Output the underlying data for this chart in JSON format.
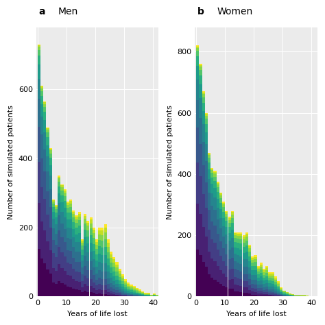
{
  "men_heights": [
    730,
    610,
    565,
    490,
    430,
    280,
    265,
    350,
    325,
    310,
    275,
    280,
    250,
    235,
    245,
    165,
    240,
    220,
    230,
    200,
    165,
    200,
    200,
    210,
    165,
    130,
    115,
    100,
    80,
    65,
    50,
    40,
    35,
    30,
    25,
    20,
    15,
    10,
    10,
    5,
    8,
    5
  ],
  "women_heights": [
    820,
    760,
    670,
    600,
    470,
    420,
    410,
    375,
    340,
    310,
    280,
    260,
    280,
    210,
    210,
    210,
    200,
    210,
    170,
    130,
    135,
    100,
    110,
    90,
    100,
    80,
    80,
    65,
    50,
    30,
    20,
    15,
    10,
    8,
    5,
    5,
    5,
    5,
    3,
    2,
    2,
    2
  ],
  "title_men": "Men",
  "title_women": "Women",
  "label_a": "a",
  "label_b": "b",
  "xlabel": "Years of life lost",
  "ylabel": "Number of simulated patients",
  "xlim_men": [
    -0.5,
    42
  ],
  "xlim_women": [
    -0.5,
    42
  ],
  "ylim_men": [
    0,
    780
  ],
  "ylim_women": [
    0,
    880
  ],
  "yticks_men": [
    0,
    200,
    400,
    600
  ],
  "yticks_women": [
    0,
    200,
    400,
    600,
    800
  ],
  "xticks": [
    0,
    10,
    20,
    30,
    40
  ],
  "bg_color": "#EBEBEB",
  "bar_width": 1.0,
  "cmap": "viridis",
  "n_stacks": 12,
  "title_fontsize": 10,
  "label_fontsize": 8,
  "tick_fontsize": 8,
  "figsize": [
    4.74,
    4.74
  ],
  "dpi": 100
}
